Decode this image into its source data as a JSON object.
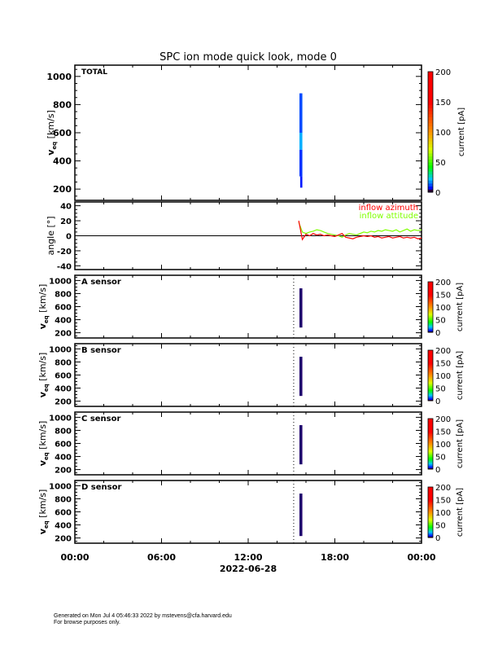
{
  "chart_data": {
    "type": "heatmap",
    "title": "SPC ion mode quick look, mode 0",
    "xlabel": "2022-06-28",
    "x_ticks": [
      "00:00",
      "06:00",
      "12:00",
      "18:00",
      "00:00"
    ],
    "xlim_hours": [
      0,
      24
    ],
    "marker_line_hour": 15.15,
    "colorbar": {
      "label": "current [pA]",
      "ticks": [
        0,
        50,
        100,
        150,
        200
      ],
      "range": [
        0,
        200
      ]
    },
    "panels": [
      {
        "label": "TOTAL",
        "ylabel": "v_eq [km/s]",
        "ylim": [
          120,
          1080
        ],
        "yticks": [
          200,
          400,
          600,
          800,
          1000
        ],
        "bins": [
          {
            "t": [
              15.55,
              15.75
            ],
            "v": [
              290,
              480
            ],
            "current": 8
          },
          {
            "t": [
              15.55,
              15.75
            ],
            "v": [
              480,
              600
            ],
            "current": 18
          },
          {
            "t": [
              15.55,
              15.75
            ],
            "v": [
              600,
              880
            ],
            "current": 10
          },
          {
            "t": [
              15.6,
              15.75
            ],
            "v": [
              210,
              290
            ],
            "current": 6
          }
        ]
      },
      {
        "label": "A sensor",
        "ylabel": "v_eq [km/s]",
        "ylim": [
          120,
          1080
        ],
        "yticks": [
          200,
          400,
          600,
          800,
          1000
        ],
        "bins": [
          {
            "t": [
              15.55,
              15.75
            ],
            "v": [
              280,
              880
            ],
            "current": 1
          }
        ]
      },
      {
        "label": "B sensor",
        "ylabel": "v_eq [km/s]",
        "ylim": [
          120,
          1080
        ],
        "yticks": [
          200,
          400,
          600,
          800,
          1000
        ],
        "bins": [
          {
            "t": [
              15.55,
              15.75
            ],
            "v": [
              280,
              880
            ],
            "current": 1
          }
        ]
      },
      {
        "label": "C sensor",
        "ylabel": "v_eq [km/s]",
        "ylim": [
          120,
          1080
        ],
        "yticks": [
          200,
          400,
          600,
          800,
          1000
        ],
        "bins": [
          {
            "t": [
              15.55,
              15.75
            ],
            "v": [
              280,
              880
            ],
            "current": 1
          }
        ]
      },
      {
        "label": "D sensor",
        "ylabel": "v_eq [km/s]",
        "ylim": [
          120,
          1080
        ],
        "yticks": [
          200,
          400,
          600,
          800,
          1000
        ],
        "bins": [
          {
            "t": [
              15.55,
              15.75
            ],
            "v": [
              230,
              880
            ],
            "current": 1
          }
        ]
      }
    ],
    "angle_panel": {
      "type": "line",
      "ylabel": "angle [°]",
      "ylim": [
        -45,
        45
      ],
      "yticks": [
        -40,
        -20,
        0,
        20,
        40
      ],
      "x_hours_start": 15.5,
      "x_hours_step": 0.25,
      "series": [
        {
          "name": "inflow azimuth",
          "color": "#ff0000",
          "values": [
            20,
            -5,
            2,
            0,
            3,
            1,
            2,
            0,
            1,
            0,
            -1,
            1,
            3,
            -2,
            -3,
            -4,
            -2,
            -1,
            0,
            -1,
            0,
            -2,
            -1,
            -3,
            -2,
            -1,
            -3,
            -2,
            -1,
            -3,
            -2,
            -3,
            -2,
            -4,
            -3
          ]
        },
        {
          "name": "inflow attitude",
          "color": "#80ff00",
          "values": [
            18,
            5,
            3,
            5,
            6,
            8,
            7,
            5,
            3,
            2,
            1,
            0,
            -2,
            1,
            3,
            2,
            1,
            3,
            5,
            4,
            6,
            5,
            7,
            6,
            8,
            7,
            6,
            8,
            5,
            7,
            9,
            6,
            8,
            7,
            8
          ]
        }
      ]
    }
  },
  "footer": {
    "line1": "Generated on Mon Jul  4 05:46:33 2022 by mstevens@cfa.harvard.edu",
    "line2": "For browse purposes only."
  }
}
